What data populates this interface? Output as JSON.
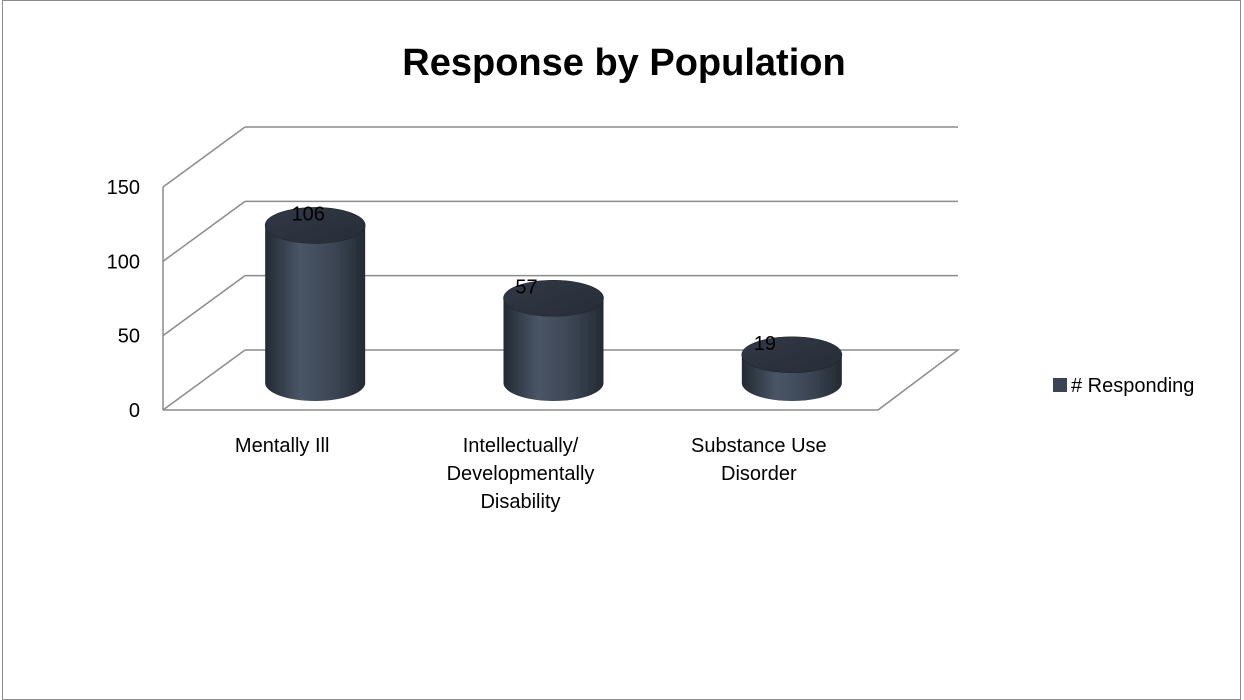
{
  "chart_data": {
    "type": "bar",
    "title": "Response by Population",
    "xlabel": "",
    "ylabel": "",
    "categories": [
      [
        "Mentally Ill"
      ],
      [
        "Intellectually/",
        "Developmentally",
        "Disability"
      ],
      [
        "Substance Use",
        "Disorder"
      ]
    ],
    "series": [
      {
        "name": "# Responding",
        "values": [
          106,
          57,
          19
        ]
      }
    ],
    "y_ticks": [
      "0",
      "50",
      "100",
      "150"
    ],
    "ylim": [
      0,
      150
    ],
    "grid": true,
    "legend": "right",
    "style": "3d-cylinder",
    "colors": {
      "bar": "#3b4452",
      "bar_dark": "#262c36",
      "bar_light": "#566173",
      "grid": "#8c8c8c"
    }
  }
}
